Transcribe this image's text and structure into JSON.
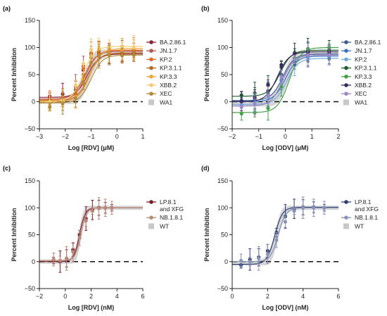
{
  "chart_data": [
    {
      "panel_label": "(a)",
      "type": "line",
      "xlabel": "Log [RDV] (μM)",
      "ylabel": "Percent Inhibition",
      "xlim": [
        -3,
        1
      ],
      "ylim": [
        -50,
        150
      ],
      "x_ticks": [
        "−3",
        "−2",
        "−1",
        "0",
        "1"
      ],
      "y_ticks": [
        "−50",
        "0",
        "50",
        "100",
        "150"
      ],
      "grid": false,
      "legend_position": "right",
      "series": [
        {
          "name": "BA.2.86.1",
          "color": "#8b2232",
          "ec50": -1.15,
          "top": 88,
          "bottom": 8,
          "x": [
            -2.6,
            -2.1,
            -1.6,
            -1.3,
            -1.0,
            -0.7,
            -0.3,
            0.2,
            0.65
          ],
          "y": [
            10,
            14,
            22,
            58,
            82,
            88,
            88,
            88,
            88
          ]
        },
        {
          "name": "JN.1.7",
          "color": "#b55a52",
          "ec50": -1.25,
          "top": 93,
          "bottom": 5,
          "x": [
            -2.6,
            -2.1,
            -1.6,
            -1.3,
            -1.0,
            -0.7,
            -0.3,
            0.2,
            0.65
          ],
          "y": [
            4,
            8,
            28,
            66,
            88,
            93,
            92,
            93,
            92
          ]
        },
        {
          "name": "KP.2",
          "color": "#e2682a",
          "ec50": -1.2,
          "top": 95,
          "bottom": 3,
          "x": [
            -2.6,
            -2.1,
            -1.6,
            -1.3,
            -1.0,
            -0.7,
            -0.3,
            0.2,
            0.65
          ],
          "y": [
            2,
            5,
            18,
            62,
            90,
            95,
            96,
            95,
            96
          ]
        },
        {
          "name": "KP.3.1.1",
          "color": "#b9681c",
          "ec50": -1.1,
          "top": 90,
          "bottom": 2,
          "x": [
            -2.6,
            -2.1,
            -1.6,
            -1.3,
            -1.0,
            -0.7,
            -0.3,
            0.2,
            0.65
          ],
          "y": [
            0,
            4,
            14,
            50,
            82,
            90,
            90,
            90,
            91
          ]
        },
        {
          "name": "KP.3.3",
          "color": "#efa43c",
          "ec50": -1.05,
          "top": 98,
          "bottom": 0,
          "x": [
            -2.6,
            -2.1,
            -1.6,
            -1.3,
            -1.0,
            -0.7,
            -0.3,
            0.2,
            0.65
          ],
          "y": [
            -2,
            2,
            10,
            42,
            84,
            97,
            98,
            97,
            98
          ]
        },
        {
          "name": "XBB.2",
          "color": "#f3cd73",
          "ec50": -1.3,
          "top": 102,
          "bottom": 1,
          "x": [
            -2.6,
            -2.1,
            -1.6,
            -1.3,
            -1.0,
            -0.7,
            -0.3,
            0.2,
            0.65
          ],
          "y": [
            0,
            3,
            30,
            70,
            96,
            101,
            102,
            101,
            100
          ]
        },
        {
          "name": "XEC",
          "color": "#b28a3a",
          "ec50": -1.0,
          "top": 86,
          "bottom": -2,
          "x": [
            -2.6,
            -2.1,
            -1.6,
            -1.3,
            -1.0,
            -0.7,
            -0.3,
            0.2,
            0.65
          ],
          "y": [
            -10,
            -3,
            6,
            34,
            72,
            84,
            86,
            85,
            86
          ]
        },
        {
          "name": "WA1",
          "color": "#c8c8c8",
          "ec50": -1.15,
          "top": 92,
          "bottom": 0,
          "band": true,
          "x": [],
          "y": []
        }
      ]
    },
    {
      "panel_label": "(b)",
      "type": "line",
      "xlabel": "Log [ODV] (μM)",
      "ylabel": "Percent Inhibition",
      "xlim": [
        -2,
        2
      ],
      "ylim": [
        -50,
        150
      ],
      "x_ticks": [
        "−2",
        "−1",
        "0",
        "1",
        "2"
      ],
      "y_ticks": [
        "−50",
        "0",
        "50",
        "100",
        "150"
      ],
      "grid": false,
      "legend_position": "right",
      "series": [
        {
          "name": "BA.2.86.1",
          "color": "#3d5a91",
          "ec50": -0.1,
          "top": 88,
          "bottom": 2,
          "x": [
            -1.65,
            -1.15,
            -0.65,
            -0.15,
            0.35,
            0.85,
            1.65
          ],
          "y": [
            2,
            6,
            20,
            50,
            80,
            88,
            88
          ]
        },
        {
          "name": "JN.1.7",
          "color": "#3b73c2",
          "ec50": 0.0,
          "top": 84,
          "bottom": 0,
          "x": [
            -1.65,
            -1.15,
            -0.65,
            -0.15,
            0.35,
            0.85,
            1.65
          ],
          "y": [
            0,
            3,
            14,
            40,
            74,
            84,
            84
          ]
        },
        {
          "name": "KP.2",
          "color": "#6fa8dc",
          "ec50": 0.05,
          "top": 80,
          "bottom": -5,
          "x": [
            -1.65,
            -1.15,
            -0.65,
            -0.15,
            0.35,
            0.85,
            1.65
          ],
          "y": [
            -6,
            -2,
            8,
            34,
            68,
            80,
            80
          ]
        },
        {
          "name": "KP.3.1.1",
          "color": "#1c5e2c",
          "ec50": -0.2,
          "top": 95,
          "bottom": 10,
          "x": [
            -1.65,
            -1.15,
            -0.65,
            -0.15,
            0.35,
            0.85,
            1.65
          ],
          "y": [
            12,
            16,
            32,
            64,
            90,
            95,
            95
          ]
        },
        {
          "name": "KP.3.3",
          "color": "#43a047",
          "ec50": 0.15,
          "top": 100,
          "bottom": -20,
          "x": [
            -1.65,
            -1.15,
            -0.65,
            -0.15,
            0.35,
            0.85,
            1.65
          ],
          "y": [
            -22,
            -20,
            -12,
            28,
            80,
            98,
            100
          ]
        },
        {
          "name": "XBB.2",
          "color": "#3b2a5e",
          "ec50": -0.3,
          "top": 92,
          "bottom": 0,
          "x": [
            -1.65,
            -1.15,
            -0.65,
            -0.15,
            0.35,
            0.85,
            1.65
          ],
          "y": [
            1,
            8,
            30,
            68,
            88,
            92,
            92
          ]
        },
        {
          "name": "XEC",
          "color": "#9b87c4",
          "ec50": -0.1,
          "top": 86,
          "bottom": -8,
          "x": [
            -1.65,
            -1.15,
            -0.65,
            -0.15,
            0.35,
            0.85,
            1.65
          ],
          "y": [
            -10,
            -4,
            12,
            46,
            78,
            86,
            86
          ]
        },
        {
          "name": "WA1",
          "color": "#c8c8c8",
          "ec50": 0.0,
          "top": 90,
          "bottom": -5,
          "band": true,
          "x": [],
          "y": []
        }
      ]
    },
    {
      "panel_label": "(c)",
      "type": "line",
      "xlabel": "Log [RDV] (nM)",
      "ylabel": "Percent Inhibition",
      "xlim": [
        -2,
        6
      ],
      "ylim": [
        -50,
        150
      ],
      "x_ticks": [
        "−2",
        "0",
        "2",
        "4",
        "6"
      ],
      "y_ticks": [
        "−50",
        "0",
        "50",
        "100",
        "150"
      ],
      "grid": false,
      "legend_position": "right",
      "series": [
        {
          "name": "LP.8.1 and XFG",
          "color": "#7b1e28",
          "ec50": 1.1,
          "top": 100,
          "bottom": 0,
          "x": [
            -0.9,
            -0.4,
            0.1,
            0.6,
            1.1,
            1.6,
            2.1,
            2.6,
            3.1,
            3.6
          ],
          "y": [
            2,
            0,
            6,
            22,
            50,
            80,
            96,
            100,
            100,
            100
          ]
        },
        {
          "name": "NB.1.8.1",
          "color": "#b98a7a",
          "ec50": 1.2,
          "top": 100,
          "bottom": 2,
          "x": [
            -0.9,
            -0.4,
            0.1,
            0.6,
            1.1,
            1.6,
            2.1,
            2.6,
            3.1,
            3.6
          ],
          "y": [
            4,
            2,
            6,
            18,
            44,
            76,
            94,
            99,
            100,
            100
          ]
        },
        {
          "name": "WT",
          "color": "#c8c8c8",
          "ec50": 1.15,
          "top": 100,
          "bottom": 0,
          "band": true,
          "x": [],
          "y": []
        }
      ]
    },
    {
      "panel_label": "(d)",
      "type": "line",
      "xlabel": "Log [ODV] (nM)",
      "ylabel": "Percent Inhibition",
      "xlim": [
        0,
        6
      ],
      "ylim": [
        -50,
        150
      ],
      "x_ticks": [
        "0",
        "2",
        "4",
        "6"
      ],
      "y_ticks": [
        "−50",
        "0",
        "50",
        "100",
        "150"
      ],
      "grid": false,
      "legend_position": "right",
      "series": [
        {
          "name": "LP.8.1 and XFG",
          "color": "#2e3f73",
          "ec50": 2.4,
          "top": 101,
          "bottom": -5,
          "x": [
            0.5,
            1.0,
            1.5,
            2.0,
            2.5,
            3.0,
            3.5,
            4.0,
            4.6,
            5.2
          ],
          "y": [
            -6,
            4,
            8,
            20,
            54,
            84,
            98,
            101,
            101,
            100
          ]
        },
        {
          "name": "NB.1.8.1",
          "color": "#8a93b8",
          "ec50": 2.6,
          "top": 100,
          "bottom": 0,
          "x": [
            0.5,
            1.0,
            1.5,
            2.0,
            2.5,
            3.0,
            3.5,
            4.0,
            4.6,
            5.2
          ],
          "y": [
            2,
            0,
            6,
            14,
            40,
            74,
            94,
            100,
            100,
            100
          ]
        },
        {
          "name": "WT",
          "color": "#c8c8c8",
          "ec50": 2.5,
          "top": 100,
          "bottom": -3,
          "band": true,
          "x": [],
          "y": []
        }
      ]
    }
  ]
}
